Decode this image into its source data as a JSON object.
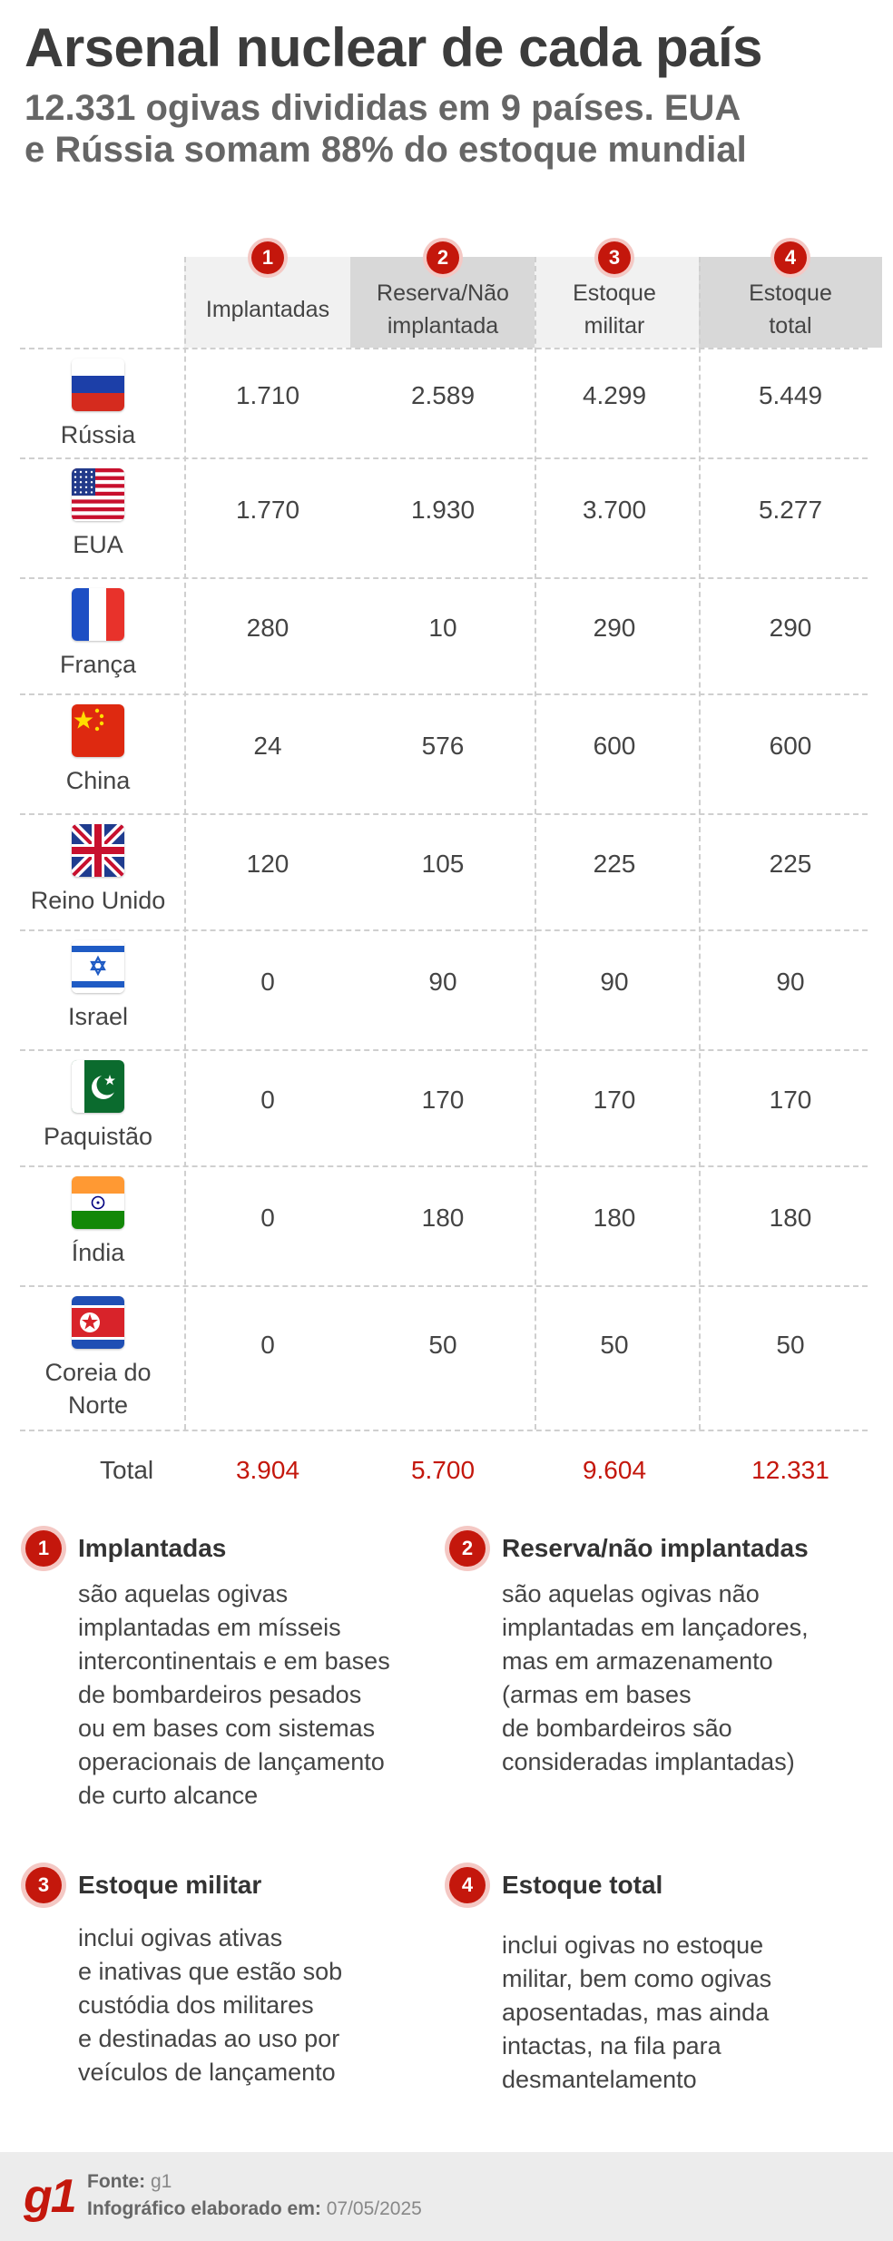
{
  "header": {
    "title": "Arsenal nuclear de cada país",
    "subtitle": "12.331 ogivas divididas em 9 países. EUA\ne Rússia somam 88% do estoque mundial"
  },
  "colors": {
    "accent": "#c4170c",
    "badge_halo": "#f4c8c4",
    "header_light": "#f1f1f1",
    "header_dark": "#d8d8d8"
  },
  "chart_data": {
    "type": "table",
    "columns": [
      {
        "num": "1",
        "label": "Implantadas"
      },
      {
        "num": "2",
        "label": "Reserva/Não\nimplantada"
      },
      {
        "num": "3",
        "label": "Estoque\nmilitar"
      },
      {
        "num": "4",
        "label": "Estoque\ntotal"
      }
    ],
    "rows": [
      {
        "country": "Rússia",
        "flag": "russia-flag",
        "values": [
          "1.710",
          "2.589",
          "4.299",
          "5.449"
        ]
      },
      {
        "country": "EUA",
        "flag": "usa-flag",
        "values": [
          "1.770",
          "1.930",
          "3.700",
          "5.277"
        ]
      },
      {
        "country": "França",
        "flag": "france-flag",
        "values": [
          "280",
          "10",
          "290",
          "290"
        ]
      },
      {
        "country": "China",
        "flag": "china-flag",
        "values": [
          "24",
          "576",
          "600",
          "600"
        ]
      },
      {
        "country": "Reino Unido",
        "flag": "uk-flag",
        "values": [
          "120",
          "105",
          "225",
          "225"
        ]
      },
      {
        "country": "Israel",
        "flag": "israel-flag",
        "values": [
          "0",
          "90",
          "90",
          "90"
        ]
      },
      {
        "country": "Paquistão",
        "flag": "pakistan-flag",
        "values": [
          "0",
          "170",
          "170",
          "170"
        ]
      },
      {
        "country": "Índia",
        "flag": "india-flag",
        "values": [
          "0",
          "180",
          "180",
          "180"
        ]
      },
      {
        "country": "Coreia do\nNorte",
        "flag": "north-korea-flag",
        "values": [
          "0",
          "50",
          "50",
          "50"
        ]
      }
    ],
    "total": {
      "label": "Total",
      "values": [
        "3.904",
        "5.700",
        "9.604",
        "12.331"
      ]
    }
  },
  "legend": [
    {
      "num": "1",
      "title": "Implantadas",
      "text": "são aquelas ogivas\nimplantadas em mísseis\nintercontinentais e em bases\nde bombardeiros pesados\nou em bases com sistemas\noperacionais de lançamento\nde curto alcance"
    },
    {
      "num": "2",
      "title": "Reserva/não implantadas",
      "text": "são aquelas ogivas não\nimplantadas em lançadores,\nmas em armazenamento\n(armas em bases\nde bombardeiros são\nconsideradas implantadas)"
    },
    {
      "num": "3",
      "title": "Estoque militar",
      "text": "inclui ogivas ativas\ne inativas que estão sob\ncustódia dos militares\ne destinadas ao uso por\nveículos de lançamento"
    },
    {
      "num": "4",
      "title": "Estoque total",
      "text": "inclui ogivas no estoque\nmilitar, bem como ogivas\naposentadas, mas ainda\nintactas, na fila para\ndesmantelamento"
    }
  ],
  "footer": {
    "logo": "g1",
    "source_label": "Fonte:",
    "source_value": "g1",
    "date_label": "Infográfico elaborado em:",
    "date_value": "07/05/2025"
  }
}
